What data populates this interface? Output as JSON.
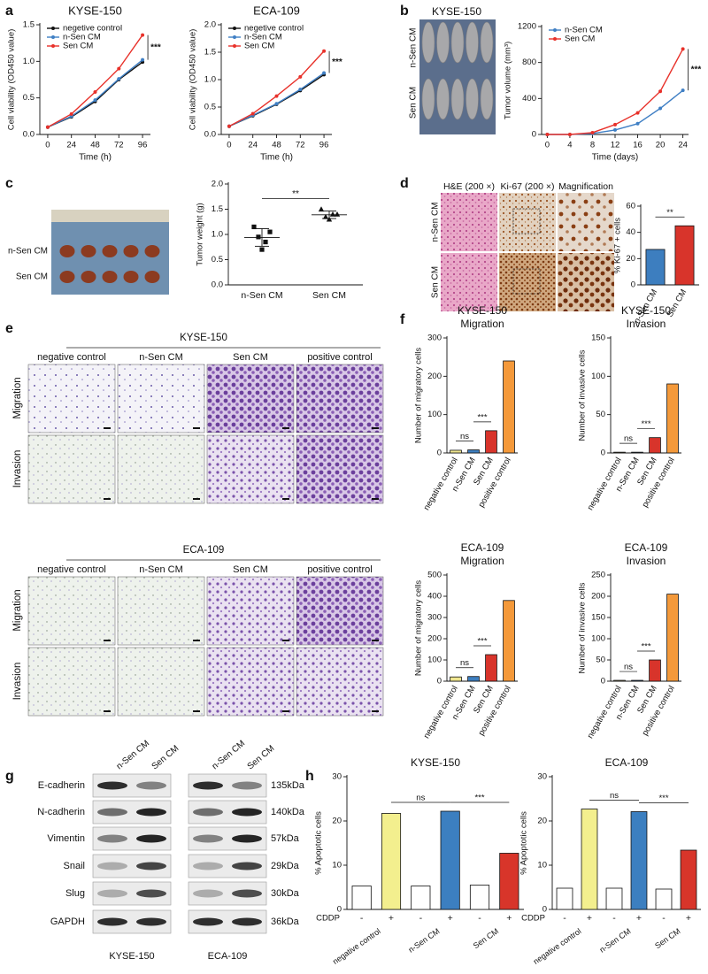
{
  "panel_labels": [
    "a",
    "b",
    "c",
    "d",
    "e",
    "f",
    "g",
    "h"
  ],
  "mouse_photo": {
    "title": "KYSE-150",
    "rows": [
      "n-Sen CM",
      "Sen CM"
    ]
  },
  "tumor_photo": {
    "rows": [
      "n-Sen CM",
      "Sen CM"
    ]
  },
  "histology": {
    "columns": [
      "H&E (200 ×)",
      "Ki-67 (200 ×)",
      "Magnification"
    ],
    "rows": [
      "n-Sen CM",
      "Sen CM"
    ]
  },
  "transwell": [
    {
      "title": "KYSE-150",
      "columns": [
        "negative control",
        "n-Sen CM",
        "Sen CM",
        "positive control"
      ],
      "rows": [
        "Migration",
        "Invasion"
      ]
    },
    {
      "title": "ECA-109",
      "columns": [
        "negative control",
        "n-Sen CM",
        "Sen CM",
        "positive control"
      ],
      "rows": [
        "Migration",
        "Invasion"
      ]
    }
  ],
  "blots": {
    "proteins": [
      "E-cadherin",
      "N-cadherin",
      "Vimentin",
      "Snail",
      "Slug",
      "GAPDH"
    ],
    "sizes": [
      "135kDa",
      "140kDa",
      "57kDa",
      "29kDa",
      "30kDa",
      "36kDa"
    ],
    "panels": [
      {
        "cell_line": "KYSE-150",
        "lanes": [
          "n-Sen CM",
          "Sen CM"
        ]
      },
      {
        "cell_line": "ECA-109",
        "lanes": [
          "n-Sen CM",
          "Sen CM"
        ]
      }
    ]
  },
  "chart_data": [
    {
      "type": "line",
      "title": "KYSE-150",
      "x": [
        0,
        24,
        48,
        72,
        96
      ],
      "xlim": [
        -8,
        104
      ],
      "xticks": [
        0,
        24,
        48,
        72,
        96
      ],
      "xlabel": "Time (h)",
      "ylabel": "Cell viability (OD450 value)",
      "ylim": [
        0,
        1.5
      ],
      "yticks": [
        {
          "value": 0,
          "label": "0.0"
        },
        {
          "value": 0.5,
          "label": "0.5"
        },
        {
          "value": 1,
          "label": "1.0"
        },
        {
          "value": 1.5,
          "label": "1.5"
        }
      ],
      "legend": "upper left",
      "annotations": [
        "***"
      ],
      "series": [
        {
          "name": "negetive control",
          "color": "#111111",
          "values": [
            0.1,
            0.24,
            0.45,
            0.75,
            0.99
          ]
        },
        {
          "name": "n-Sen CM",
          "color": "#3f7fc4",
          "values": [
            0.1,
            0.25,
            0.47,
            0.76,
            1.02
          ]
        },
        {
          "name": "Sen CM",
          "color": "#e8312a",
          "values": [
            0.1,
            0.28,
            0.58,
            0.9,
            1.36
          ]
        }
      ]
    },
    {
      "type": "line",
      "title": "ECA-109",
      "x": [
        0,
        24,
        48,
        72,
        96
      ],
      "xlim": [
        -8,
        104
      ],
      "xticks": [
        0,
        24,
        48,
        72,
        96
      ],
      "xlabel": "Time (h)",
      "ylabel": "Cell viability (OD450 value)",
      "ylim": [
        0,
        2
      ],
      "yticks": [
        {
          "value": 0,
          "label": "0.0"
        },
        {
          "value": 0.5,
          "label": "0.5"
        },
        {
          "value": 1,
          "label": "1.0"
        },
        {
          "value": 1.5,
          "label": "1.5"
        },
        {
          "value": 2,
          "label": "2.0"
        }
      ],
      "legend": "upper left",
      "annotations": [
        "***"
      ],
      "series": [
        {
          "name": "negetive control",
          "color": "#111111",
          "values": [
            0.15,
            0.34,
            0.55,
            0.8,
            1.09
          ]
        },
        {
          "name": "n-Sen CM",
          "color": "#3f7fc4",
          "values": [
            0.15,
            0.35,
            0.56,
            0.82,
            1.12
          ]
        },
        {
          "name": "Sen CM",
          "color": "#e8312a",
          "values": [
            0.15,
            0.38,
            0.7,
            1.05,
            1.52
          ]
        }
      ]
    },
    {
      "type": "line",
      "x": [
        0,
        4,
        8,
        12,
        16,
        20,
        24
      ],
      "xlim": [
        -1,
        25
      ],
      "xticks": [
        0,
        4,
        8,
        12,
        16,
        20,
        24
      ],
      "xlabel": "Time (days)",
      "ylabel": "Tumor volume (mm³)",
      "ylim": [
        0,
        1200
      ],
      "yticks": [
        0,
        400,
        800,
        1200
      ],
      "legend": "upper left",
      "annotations": [
        "***"
      ],
      "series": [
        {
          "name": "n-Sen CM",
          "color": "#3f7fc4",
          "values": [
            0,
            0,
            10,
            50,
            120,
            290,
            490
          ]
        },
        {
          "name": "Sen CM",
          "color": "#e8312a",
          "values": [
            0,
            0,
            20,
            110,
            240,
            480,
            950
          ]
        }
      ]
    },
    {
      "type": "dotplot",
      "categories": [
        "n-Sen CM",
        "Sen CM"
      ],
      "ylabel": "Tumor weight (g)",
      "color": "#111111",
      "markers": [
        "square",
        "triangle"
      ],
      "ylim": [
        0,
        2
      ],
      "yticks": [
        {
          "value": 0,
          "label": "0.0"
        },
        {
          "value": 0.5,
          "label": "0.5"
        },
        {
          "value": 1,
          "label": "1.0"
        },
        {
          "value": 1.5,
          "label": "1.5"
        },
        {
          "value": 2,
          "label": "2.0"
        }
      ],
      "annotations": [
        "**"
      ],
      "values": [
        [
          1.15,
          1.05,
          0.95,
          0.85,
          0.7
        ],
        [
          1.5,
          1.4,
          1.35,
          1.4,
          1.3
        ]
      ]
    },
    {
      "type": "bar",
      "categories": [
        "n-Sen CM",
        "Sen CM"
      ],
      "ylabel": "% Ki-67 + cells",
      "values": [
        27,
        45
      ],
      "colors": [
        "#3d7ebf",
        "#d8342b"
      ],
      "ylim": [
        0,
        60
      ],
      "yticks": [
        0,
        20,
        40,
        60
      ],
      "annotations": [
        "**"
      ]
    },
    {
      "type": "bar",
      "title": "KYSE-150",
      "subtitle": "Migration",
      "categories": [
        "negative control",
        "n-Sen CM",
        "Sen CM",
        "positive control"
      ],
      "ylabel": "Number of migratory cells",
      "values": [
        7,
        8,
        58,
        240
      ],
      "colors": [
        "#efe68f",
        "#3d7ebf",
        "#d8342b",
        "#f4993a"
      ],
      "ylim": [
        0,
        300
      ],
      "yticks": [
        0,
        100,
        200,
        300
      ],
      "annotations": [
        "ns",
        "***"
      ]
    },
    {
      "type": "bar",
      "title": "KYSE-150",
      "subtitle": "Invasion",
      "categories": [
        "negative control",
        "n-Sen CM",
        "Sen CM",
        "positive control"
      ],
      "ylabel": "Number of invasive cells",
      "values": [
        1,
        1,
        20,
        90
      ],
      "colors": [
        "#efe68f",
        "#3d7ebf",
        "#d8342b",
        "#f4993a"
      ],
      "ylim": [
        0,
        150
      ],
      "yticks": [
        0,
        50,
        100,
        150
      ],
      "annotations": [
        "ns",
        "***"
      ]
    },
    {
      "type": "bar",
      "title": "ECA-109",
      "subtitle": "Migration",
      "categories": [
        "negative control",
        "n-Sen CM",
        "Sen CM",
        "positive control"
      ],
      "ylabel": "Number of migratory cells",
      "values": [
        20,
        22,
        125,
        380
      ],
      "colors": [
        "#efe68f",
        "#3d7ebf",
        "#d8342b",
        "#f4993a"
      ],
      "ylim": [
        0,
        500
      ],
      "yticks": [
        0,
        100,
        200,
        300,
        400,
        500
      ],
      "annotations": [
        "ns",
        "***"
      ]
    },
    {
      "type": "bar",
      "title": "ECA-109",
      "subtitle": "Invasion",
      "categories": [
        "negative control",
        "n-Sen CM",
        "Sen CM",
        "positive control"
      ],
      "ylabel": "Number of invasive cells",
      "values": [
        2,
        2,
        50,
        205
      ],
      "colors": [
        "#efe68f",
        "#3d7ebf",
        "#d8342b",
        "#f4993a"
      ],
      "ylim": [
        0,
        250
      ],
      "yticks": [
        0,
        50,
        100,
        150,
        200,
        250
      ],
      "annotations": [
        "ns",
        "***"
      ]
    },
    {
      "type": "bar",
      "title": "KYSE-150",
      "ylabel": "% Apoptotic cells",
      "treatment_label": "CDDP",
      "categories": [
        "-",
        "+",
        "-",
        "+",
        "-",
        "+"
      ],
      "groups": [
        "negative control",
        "n-Sen CM",
        "Sen CM"
      ],
      "values": [
        5.3,
        21.7,
        5.3,
        22.2,
        5.5,
        12.7
      ],
      "colors": [
        "#ffffff",
        "#f3ef8e",
        "#ffffff",
        "#3c7fc0",
        "#ffffff",
        "#d8352a"
      ],
      "ylim": [
        0,
        30
      ],
      "yticks": [
        0,
        10,
        20,
        30
      ],
      "annotations": [
        "ns",
        "***"
      ]
    },
    {
      "type": "bar",
      "title": "ECA-109",
      "ylabel": "% Apoptotic cells",
      "treatment_label": "CDDP",
      "categories": [
        "-",
        "+",
        "-",
        "+",
        "-",
        "+"
      ],
      "groups": [
        "negative control",
        "n-Sen CM",
        "Sen CM"
      ],
      "values": [
        4.8,
        22.7,
        4.8,
        22.1,
        4.6,
        13.4
      ],
      "colors": [
        "#ffffff",
        "#f3ef8e",
        "#ffffff",
        "#3c7fc0",
        "#ffffff",
        "#d8352a"
      ],
      "ylim": [
        0,
        30
      ],
      "yticks": [
        0,
        10,
        20,
        30
      ],
      "annotations": [
        "ns",
        "***"
      ]
    }
  ]
}
